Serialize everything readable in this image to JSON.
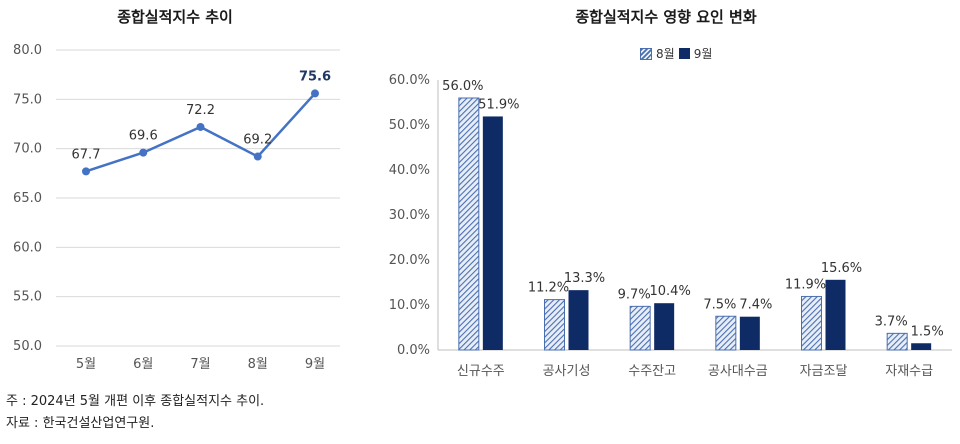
{
  "notes": {
    "note": "주 : 2024년 5월 개편 이후 종합실적지수 추이.",
    "source": "자료 : 한국건설산업연구원."
  },
  "chart_data": [
    {
      "type": "line",
      "title": "종합실적지수 추이",
      "categories": [
        "5월",
        "6월",
        "7월",
        "8월",
        "9월"
      ],
      "values": [
        67.7,
        69.6,
        72.2,
        69.2,
        75.6
      ],
      "labels": [
        "67.7",
        "69.6",
        "72.2",
        "69.2",
        "75.6"
      ],
      "yticks": [
        "80.0",
        "75.0",
        "70.0",
        "65.0",
        "60.0",
        "55.0",
        "50.0"
      ],
      "ylim": [
        50,
        80
      ],
      "color": "#4472c4",
      "grid": true
    },
    {
      "type": "bar",
      "title": "종합실적지수 영향 요인 변화",
      "categories": [
        "신규수주",
        "공사기성",
        "수주잔고",
        "공사대수금",
        "자금조달",
        "자재수급"
      ],
      "series": [
        {
          "name": "8월",
          "values": [
            56.0,
            11.2,
            9.7,
            7.5,
            11.9,
            3.7
          ],
          "labels": [
            "56.0%",
            "11.2%",
            "9.7%",
            "7.5%",
            "11.9%",
            "3.7%"
          ],
          "color": "#4a6fb0"
        },
        {
          "name": "9월",
          "values": [
            51.9,
            13.3,
            10.4,
            7.4,
            15.6,
            1.5
          ],
          "labels": [
            "51.9%",
            "13.3%",
            "10.4%",
            "7.4%",
            "15.6%",
            "1.5%"
          ],
          "color": "#0f2b66"
        }
      ],
      "yticks": [
        "60.0%",
        "50.0%",
        "40.0%",
        "30.0%",
        "20.0%",
        "10.0%",
        "0.0%"
      ],
      "ylim": [
        0,
        60
      ],
      "legend": "top-center",
      "grid": false
    }
  ]
}
